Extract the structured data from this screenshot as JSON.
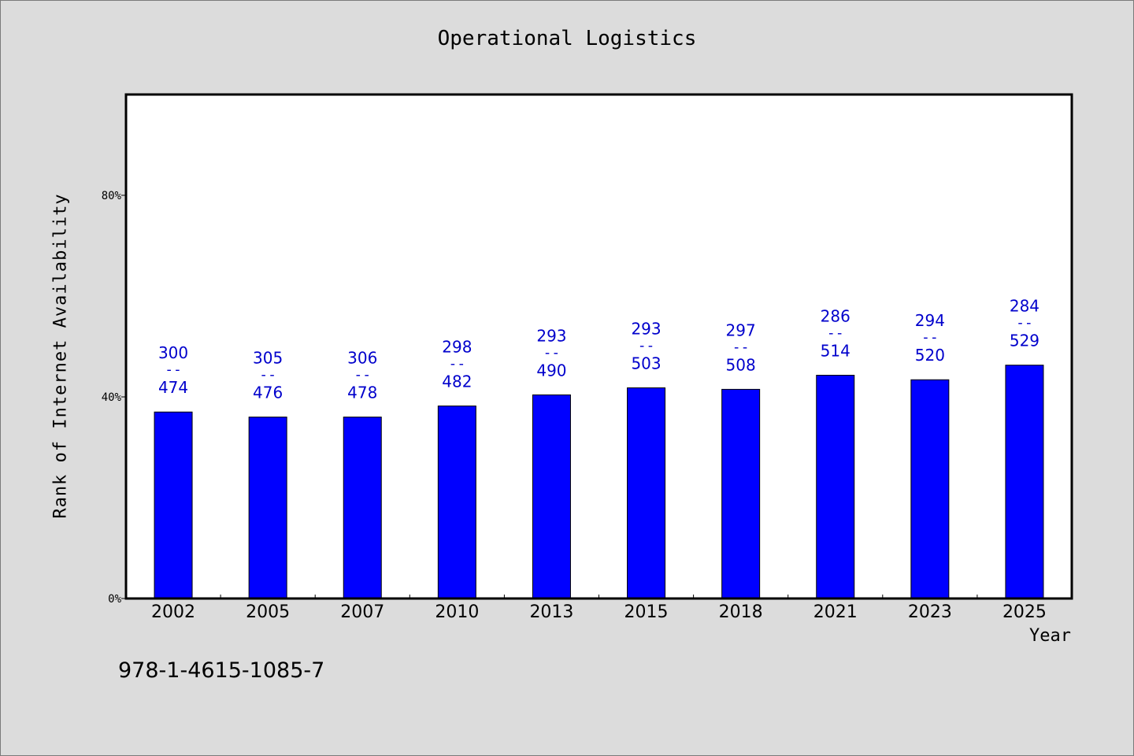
{
  "chart_data": {
    "type": "bar",
    "title": "Operational Logistics",
    "xlabel": "Year",
    "ylabel": "Rank of Internet Availability",
    "categories": [
      "2002",
      "2005",
      "2007",
      "2010",
      "2013",
      "2015",
      "2018",
      "2021",
      "2023",
      "2025"
    ],
    "values": [
      37,
      36,
      36,
      38.2,
      40.4,
      41.8,
      41.5,
      44.3,
      43.4,
      46.3
    ],
    "data_labels": [
      {
        "top": "300",
        "sep": "--",
        "bottom": "474"
      },
      {
        "top": "305",
        "sep": "--",
        "bottom": "476"
      },
      {
        "top": "306",
        "sep": "--",
        "bottom": "478"
      },
      {
        "top": "298",
        "sep": "--",
        "bottom": "482"
      },
      {
        "top": "293",
        "sep": "--",
        "bottom": "490"
      },
      {
        "top": "293",
        "sep": "--",
        "bottom": "503"
      },
      {
        "top": "297",
        "sep": "--",
        "bottom": "508"
      },
      {
        "top": "286",
        "sep": "--",
        "bottom": "514"
      },
      {
        "top": "294",
        "sep": "--",
        "bottom": "520"
      },
      {
        "top": "284",
        "sep": "--",
        "bottom": "529"
      }
    ],
    "yticks": [
      {
        "value": 0,
        "label": "0%"
      },
      {
        "value": 40,
        "label": "40%"
      },
      {
        "value": 80,
        "label": "80%"
      }
    ],
    "ylim": [
      0,
      100
    ],
    "grid": false,
    "legend": "none",
    "bar_color": "#0000ff",
    "label_color": "#0000cc"
  },
  "footnote": "978-1-4615-1085-7"
}
